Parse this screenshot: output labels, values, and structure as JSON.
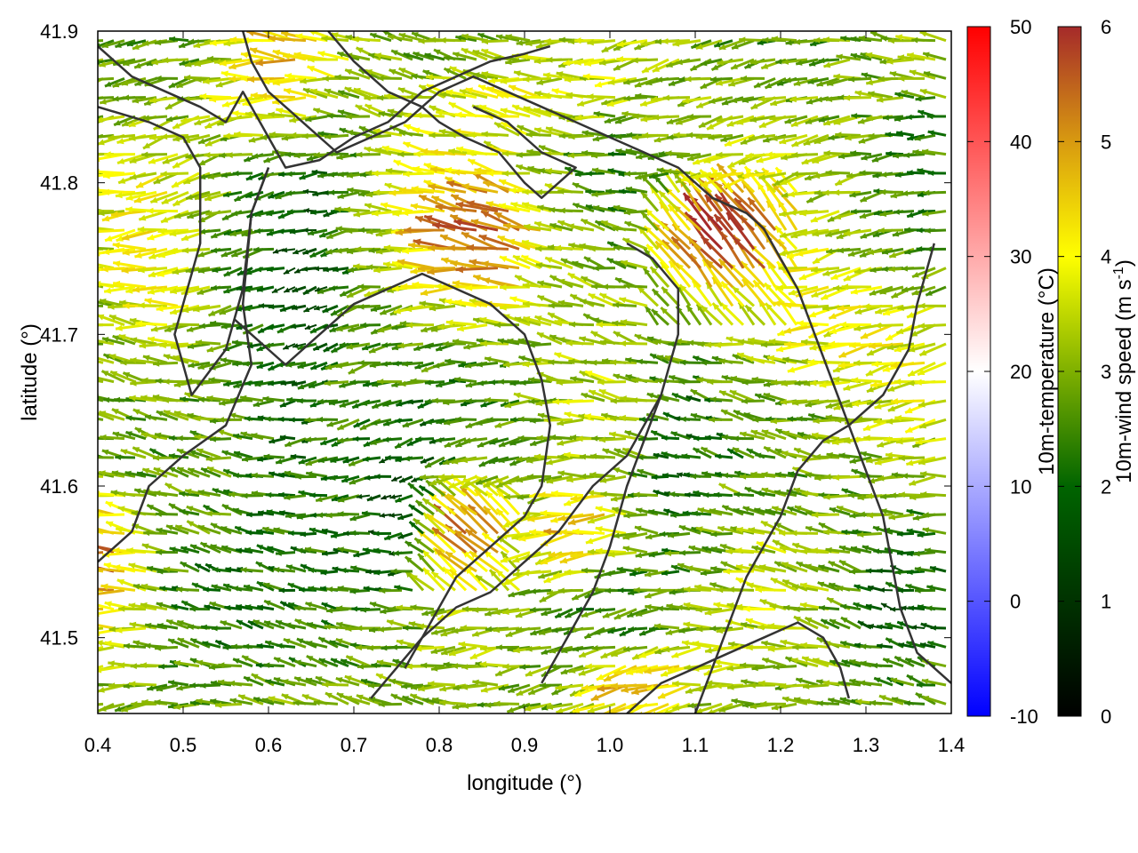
{
  "chart_data": {
    "type": "vector-field",
    "xlabel": "longitude (°)",
    "ylabel": "latitude (°)",
    "xlim": [
      0.4,
      1.4
    ],
    "ylim": [
      41.45,
      41.9
    ],
    "xticks": [
      "0.4",
      "0.5",
      "0.6",
      "0.7",
      "0.8",
      "0.9",
      "1.0",
      "1.1",
      "1.2",
      "1.3",
      "1.4"
    ],
    "yticks": [
      "41.5",
      "41.6",
      "41.7",
      "41.8",
      "41.9"
    ],
    "background_field": {
      "name": "10m-temperature",
      "label": "10m-temperature (°C)",
      "range": [
        -10,
        50
      ],
      "ticks": [
        "-10",
        "0",
        "10",
        "20",
        "30",
        "40",
        "50"
      ],
      "colors": [
        "#0000ff",
        "#ffffff",
        "#ff0000"
      ]
    },
    "vector_field": {
      "name": "10m-wind speed",
      "label_main": "10m-wind speed (m s",
      "label_sup": "-1",
      "label_end": ")",
      "range": [
        0,
        6
      ],
      "ticks": [
        "0",
        "1",
        "2",
        "3",
        "4",
        "5",
        "6"
      ],
      "colors": [
        "#000000",
        "#006400",
        "#7fb000",
        "#ffff00",
        "#d89a10",
        "#a52a2a"
      ],
      "arrow_grid_spacing_deg": [
        0.0125,
        0.0125
      ],
      "dominant_direction": "westward"
    },
    "coastline_color": "#333333"
  }
}
